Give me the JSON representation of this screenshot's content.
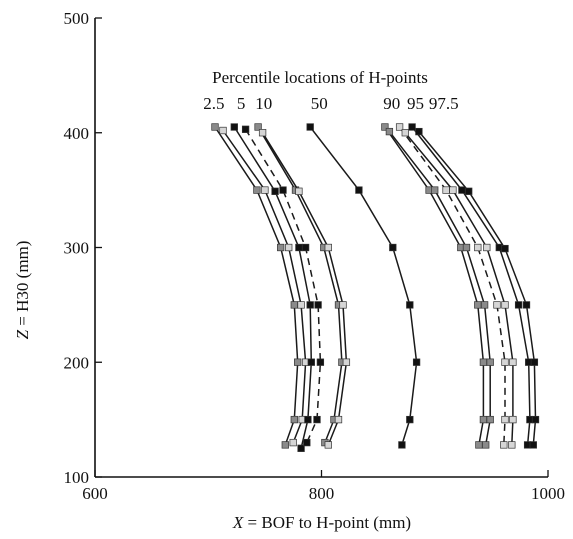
{
  "chart_data": {
    "type": "line",
    "title": "",
    "annotation_title": "Percentile locations of H-points",
    "xlabel_var": "X",
    "xlabel_rest": " = BOF to H-point (mm)",
    "ylabel_var": "Z",
    "ylabel_rest": " = H30 (mm)",
    "xlim": [
      600,
      1000
    ],
    "ylim": [
      100,
      500
    ],
    "x_ticks": [
      600,
      800,
      1000
    ],
    "y_ticks": [
      100,
      200,
      300,
      400,
      500
    ],
    "legend_position": "none",
    "grid": false,
    "series": [
      {
        "name": "2.5",
        "marker": "gray",
        "dash": "solid",
        "points": [
          [
            706,
            405
          ],
          [
            743,
            350
          ],
          [
            764,
            300
          ],
          [
            776,
            250
          ],
          [
            779,
            200
          ],
          [
            776,
            150
          ],
          [
            768,
            128
          ]
        ]
      },
      {
        "name": "5",
        "marker": "light",
        "dash": "solid",
        "points": [
          [
            713,
            402
          ],
          [
            750,
            350
          ],
          [
            771,
            300
          ],
          [
            782,
            250
          ],
          [
            786,
            200
          ],
          [
            783,
            150
          ],
          [
            775,
            130
          ]
        ]
      },
      {
        "name": "10",
        "marker": "black",
        "dash": "solid",
        "points": [
          [
            723,
            405
          ],
          [
            759,
            349
          ],
          [
            780,
            300
          ],
          [
            790,
            250
          ],
          [
            791,
            200
          ],
          [
            788,
            150
          ],
          [
            782,
            125
          ]
        ]
      },
      {
        "name": "",
        "marker": "black",
        "dash": "dashed",
        "points": [
          [
            733,
            403
          ],
          [
            766,
            350
          ],
          [
            786,
            300
          ],
          [
            797,
            250
          ],
          [
            799,
            200
          ],
          [
            796,
            150
          ],
          [
            787,
            130
          ]
        ]
      },
      {
        "name": "",
        "marker": "gray",
        "dash": "solid",
        "points": [
          [
            744,
            405
          ],
          [
            777,
            350
          ],
          [
            802,
            300
          ],
          [
            815,
            250
          ],
          [
            818,
            200
          ],
          [
            811,
            150
          ],
          [
            803,
            130
          ]
        ]
      },
      {
        "name": "",
        "marker": "light",
        "dash": "solid",
        "points": [
          [
            748,
            400
          ],
          [
            780,
            349
          ],
          [
            806,
            300
          ],
          [
            819,
            250
          ],
          [
            822,
            200
          ],
          [
            815,
            150
          ],
          [
            806,
            128
          ]
        ]
      },
      {
        "name": "50",
        "marker": "black",
        "dash": "solid",
        "points": [
          [
            790,
            405
          ],
          [
            833,
            350
          ],
          [
            863,
            300
          ],
          [
            878,
            250
          ],
          [
            884,
            200
          ],
          [
            878,
            150
          ],
          [
            871,
            128
          ]
        ]
      },
      {
        "name": "",
        "marker": "gray",
        "dash": "solid",
        "points": [
          [
            856,
            405
          ],
          [
            895,
            350
          ],
          [
            923,
            300
          ],
          [
            938,
            250
          ],
          [
            943,
            200
          ],
          [
            943,
            150
          ],
          [
            939,
            128
          ]
        ]
      },
      {
        "name": "90",
        "marker": "gray",
        "dash": "solid",
        "points": [
          [
            860,
            401
          ],
          [
            900,
            350
          ],
          [
            928,
            300
          ],
          [
            944,
            250
          ],
          [
            949,
            200
          ],
          [
            949,
            150
          ],
          [
            945,
            128
          ]
        ]
      },
      {
        "name": "95",
        "marker": "light",
        "dash": "dashed",
        "points": [
          [
            869,
            405
          ],
          [
            910,
            350
          ],
          [
            938,
            300
          ],
          [
            955,
            250
          ],
          [
            962,
            200
          ],
          [
            962,
            150
          ],
          [
            961,
            128
          ]
        ]
      },
      {
        "name": "",
        "marker": "light",
        "dash": "solid",
        "points": [
          [
            874,
            400
          ],
          [
            916,
            350
          ],
          [
            946,
            300
          ],
          [
            962,
            250
          ],
          [
            969,
            200
          ],
          [
            969,
            150
          ],
          [
            968,
            128
          ]
        ]
      },
      {
        "name": "97.5",
        "marker": "black",
        "dash": "solid",
        "points": [
          [
            880,
            405
          ],
          [
            924,
            350
          ],
          [
            957,
            300
          ],
          [
            974,
            250
          ],
          [
            983,
            200
          ],
          [
            984,
            150
          ],
          [
            982,
            128
          ]
        ]
      },
      {
        "name": "",
        "marker": "black",
        "dash": "solid",
        "points": [
          [
            886,
            401
          ],
          [
            930,
            349
          ],
          [
            962,
            299
          ],
          [
            981,
            250
          ],
          [
            988,
            200
          ],
          [
            989,
            150
          ],
          [
            987,
            128
          ]
        ]
      }
    ],
    "percentile_labels": [
      {
        "text": "2.5",
        "x": 705
      },
      {
        "text": "5",
        "x": 729
      },
      {
        "text": "10",
        "x": 749
      },
      {
        "text": "50",
        "x": 798
      },
      {
        "text": "90",
        "x": 862
      },
      {
        "text": "95",
        "x": 883
      },
      {
        "text": "97.5",
        "x": 908
      }
    ]
  },
  "colors": {
    "line": "#1a1a1a",
    "marker_black": "#111111",
    "marker_gray": "#8a8a8a",
    "marker_light": "#d6d6d6",
    "marker_stroke": "#333333"
  }
}
